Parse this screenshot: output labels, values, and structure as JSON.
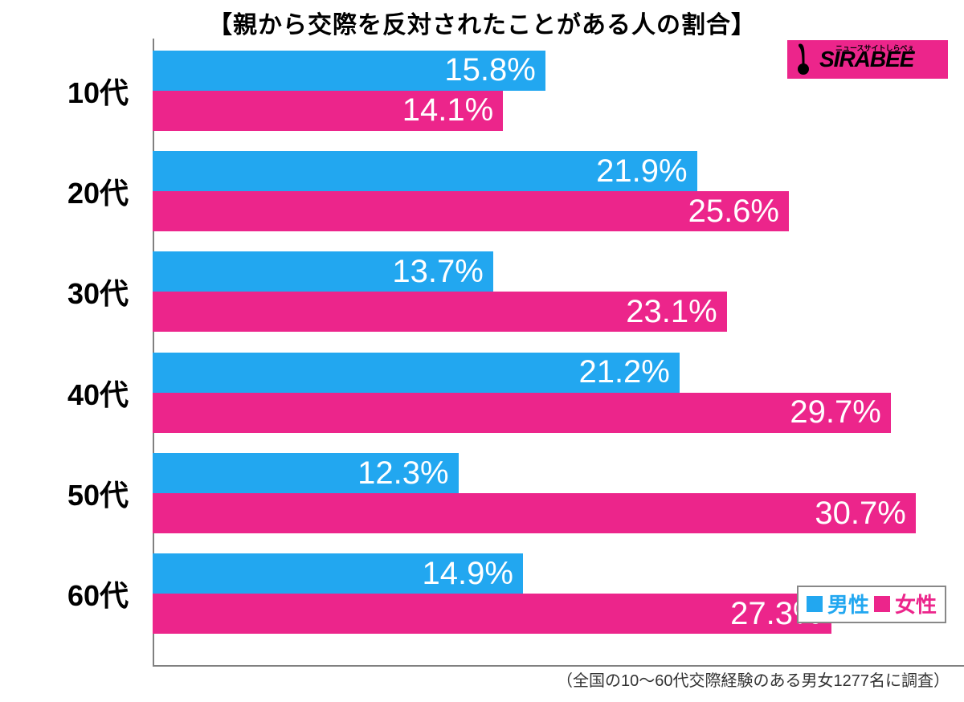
{
  "chart": {
    "type": "bar",
    "title": "【親から交際を反対されたことがある人の割合】",
    "title_fontsize": 30,
    "title_color": "#000000",
    "background_color": "#ffffff",
    "axis_color": "#808080",
    "categories": [
      "10代",
      "20代",
      "30代",
      "40代",
      "50代",
      "60代"
    ],
    "category_fontsize": 36,
    "category_color": "#000000",
    "series": [
      {
        "name": "男性",
        "color": "#22a7f0",
        "values": [
          15.8,
          21.9,
          13.7,
          21.2,
          12.3,
          14.9
        ]
      },
      {
        "name": "女性",
        "color": "#ec258b",
        "values": [
          14.1,
          25.6,
          23.1,
          29.7,
          30.7,
          27.3
        ]
      }
    ],
    "value_suffix": "%",
    "value_fontsize": 40,
    "value_color": "#ffffff",
    "x_min": 0,
    "x_max": 32,
    "y_axis_x": 190,
    "bar_area_start": 190,
    "group_gap": 30,
    "group_height": 100,
    "category_label_width": 160,
    "legend_fontsize": 26,
    "footnote": "（全国の10～60代交際経験のある男女1277名に調査）",
    "footnote_fontsize": 20,
    "footnote_color": "#333333"
  },
  "logo": {
    "background": "#ec258b",
    "text": "SIRABEE",
    "subtext": "ニュースサイトしらべぇ",
    "text_color": "#000000",
    "subtext_fontsize": 9,
    "text_fontsize": 28,
    "icon_color": "#000000"
  }
}
